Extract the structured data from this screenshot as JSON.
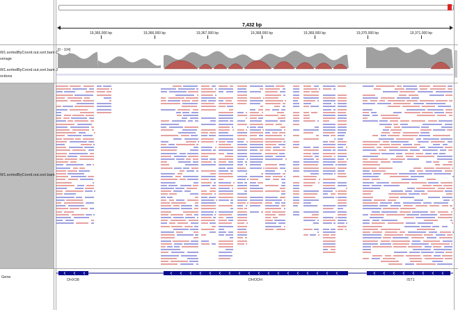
{
  "ruler": {
    "span_label": "7,432 bp",
    "ticks": [
      {
        "label": "19,365,000 bp"
      },
      {
        "label": "19,366,000 bp"
      },
      {
        "label": "19,367,000 bp"
      },
      {
        "label": "19,368,000 bp"
      },
      {
        "label": "19,369,000 bp"
      },
      {
        "label": "19,370,000 bp"
      },
      {
        "label": "19,371,000 bp"
      }
    ]
  },
  "tracks": {
    "coverage_name": "W1.sortedByCoord.out.sort.bam C\nverage",
    "coverage_range": "[0 - 104]",
    "junctions_name": "W1.sortedByCoord.out.sort.bam J\nnctions",
    "alignment_name": "W1.sortedByCoord.out.sort.bam",
    "gene_name": "Gene"
  },
  "genes": [
    {
      "name": "DHX38"
    },
    {
      "name": "DHODH"
    },
    {
      "name": "IST1"
    }
  ],
  "colors": {
    "forward_read": "#e5a0a0",
    "reverse_read": "#a0a0e0",
    "coverage": "#a0a0a0",
    "junction_arc": "#b14a4a",
    "gene": "#0b0b8f",
    "position_marker": "#dd2222"
  }
}
